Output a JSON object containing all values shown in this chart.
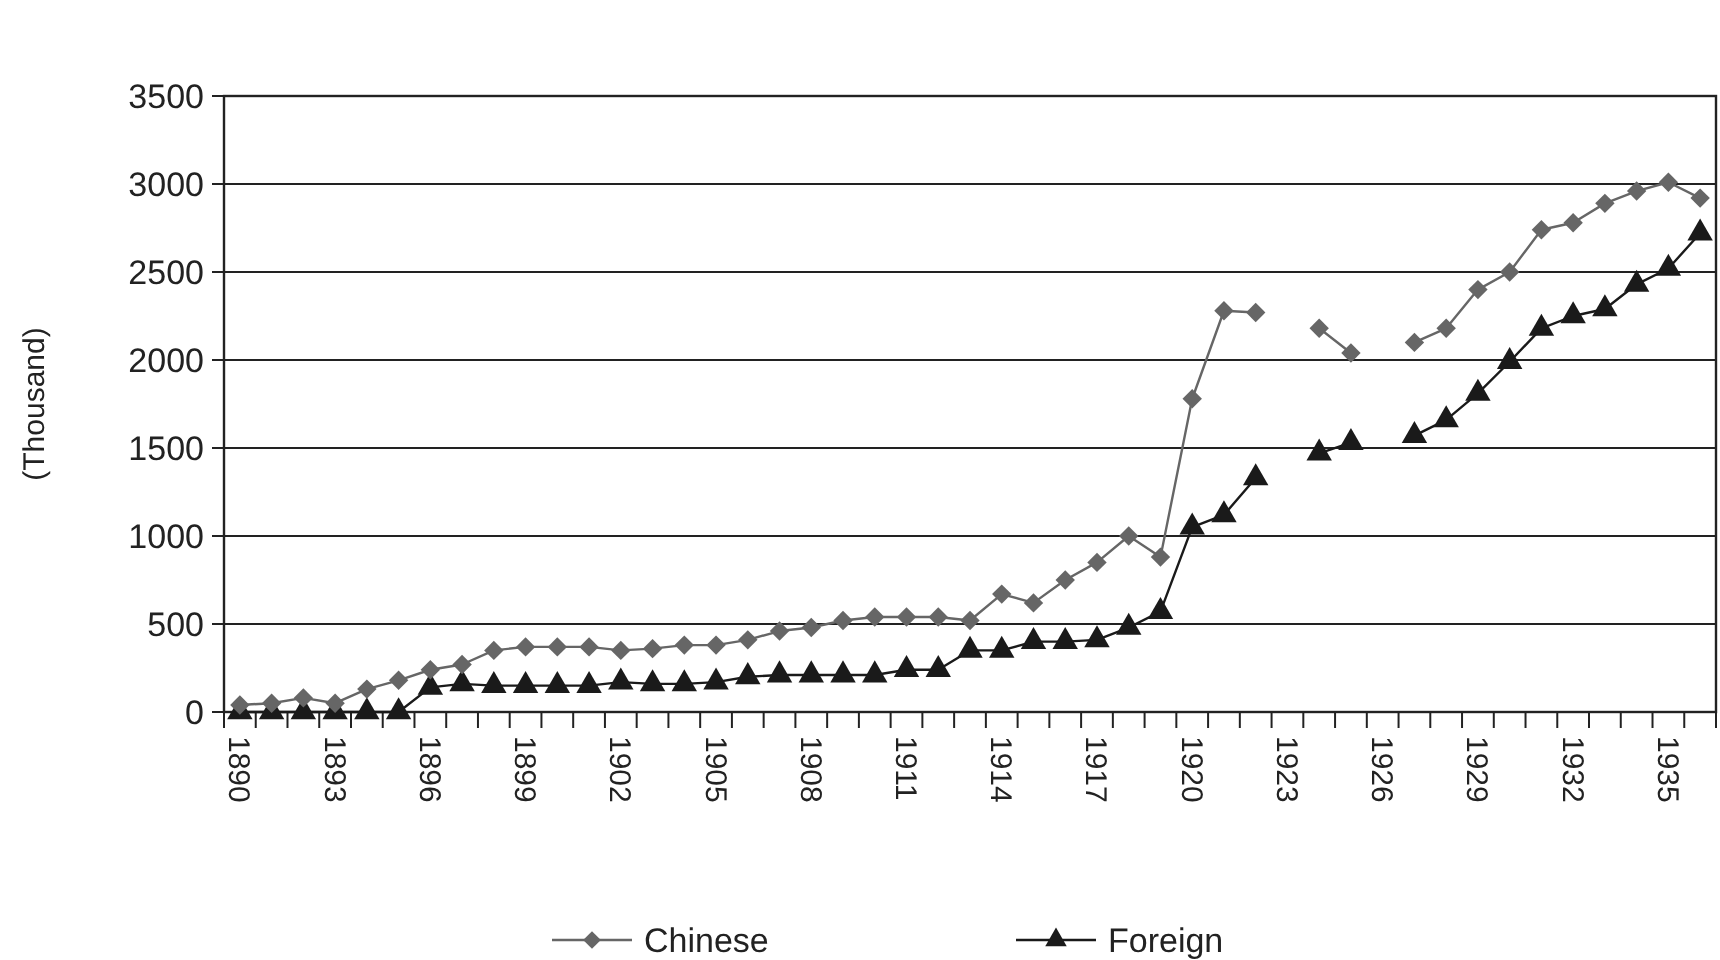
{
  "chart_data": {
    "type": "line",
    "ylabel": "(Thousand)",
    "categories": [
      "1890",
      null,
      null,
      "1893",
      null,
      null,
      "1896",
      null,
      null,
      "1899",
      null,
      null,
      "1902",
      null,
      null,
      "1905",
      null,
      null,
      "1908",
      null,
      null,
      "1911",
      null,
      null,
      "1914",
      null,
      null,
      "1917",
      null,
      null,
      "1920",
      null,
      null,
      "1923",
      null,
      null,
      "1926",
      null,
      null,
      "1929",
      null,
      null,
      "1932",
      null,
      null,
      "1935",
      null
    ],
    "series": [
      {
        "name": "Chinese",
        "color": "#666666",
        "marker": "diamond",
        "values": [
          40,
          50,
          80,
          50,
          130,
          180,
          240,
          270,
          350,
          370,
          370,
          370,
          350,
          360,
          380,
          380,
          410,
          460,
          480,
          520,
          540,
          540,
          540,
          520,
          670,
          620,
          750,
          850,
          1000,
          880,
          1780,
          2280,
          2270,
          null,
          2180,
          2040,
          null,
          2100,
          2180,
          2400,
          2500,
          2740,
          2780,
          2890,
          2960,
          3010,
          2920
        ]
      },
      {
        "name": "Foreign",
        "color": "#1a1a1a",
        "marker": "triangle",
        "values": [
          0,
          0,
          0,
          0,
          0,
          0,
          140,
          160,
          150,
          150,
          150,
          150,
          170,
          160,
          160,
          170,
          200,
          210,
          210,
          210,
          210,
          240,
          240,
          350,
          350,
          400,
          400,
          410,
          480,
          570,
          1050,
          1120,
          1330,
          null,
          1470,
          1530,
          null,
          1570,
          1660,
          1810,
          1990,
          2180,
          2250,
          2290,
          2430,
          2520,
          2720
        ]
      }
    ],
    "ylim": [
      0,
      3500
    ],
    "yticks": [
      0,
      500,
      1000,
      1500,
      2000,
      2500,
      3000,
      3500
    ],
    "grid": "y",
    "legend": "bottom",
    "line_style": "solid"
  }
}
